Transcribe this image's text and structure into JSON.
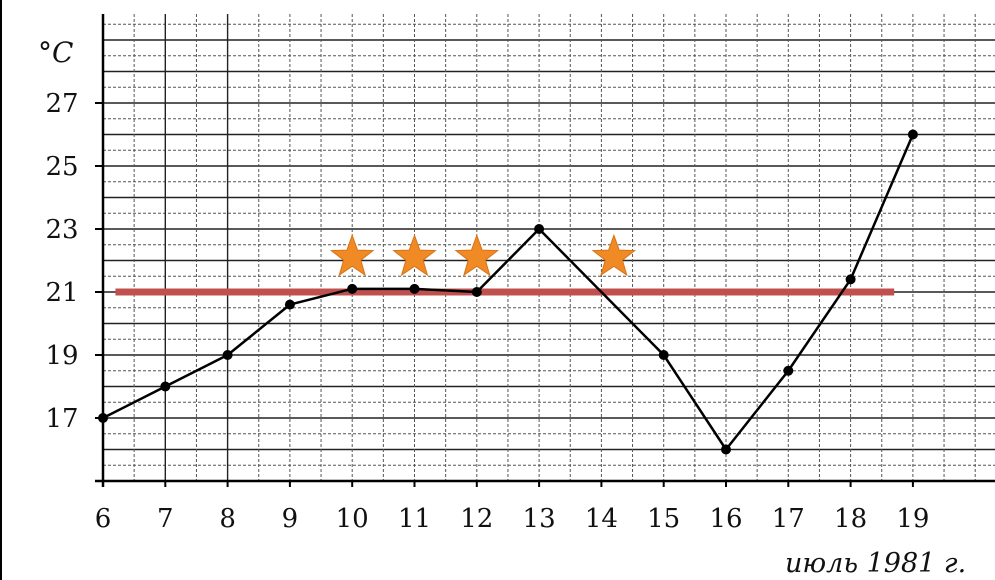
{
  "chart_data": {
    "type": "line",
    "ylabel": "°C",
    "xlabel": "июль 1981 г.",
    "x": [
      6,
      7,
      8,
      9,
      10,
      11,
      12,
      13,
      14,
      15,
      16,
      17,
      18,
      19
    ],
    "y_ticks": [
      17,
      19,
      21,
      23,
      25,
      27
    ],
    "xlim": [
      6,
      20
    ],
    "ylim": [
      15,
      28.5
    ],
    "grid": true,
    "series": [
      {
        "values": [
          17,
          18,
          19,
          20.6,
          21.1,
          21.1,
          21.0,
          23.0,
          null,
          19.0,
          16.0,
          18.5,
          21.4,
          26.0
        ],
        "color": "#000000",
        "markers": true
      }
    ],
    "reference_line": {
      "y": 21,
      "x_range": [
        6.2,
        18.7
      ],
      "color": "#c0504d"
    },
    "star_markers": {
      "x": [
        10,
        11,
        12,
        14.2
      ],
      "y": 22.1,
      "color": "#f08a24"
    }
  }
}
